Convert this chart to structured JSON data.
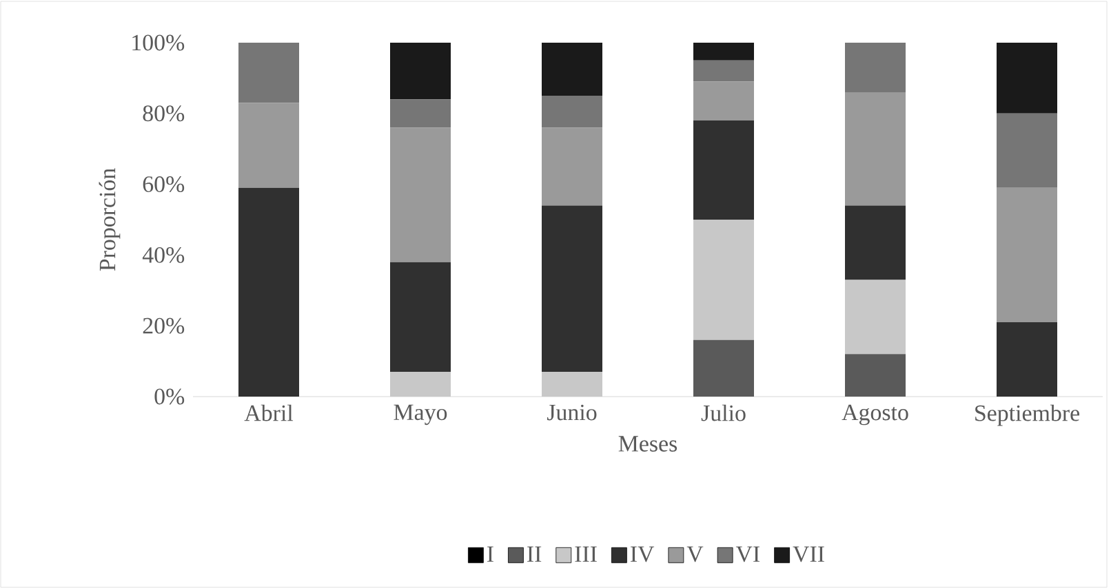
{
  "chart_data": {
    "type": "bar",
    "stacked": true,
    "xlabel": "Meses",
    "ylabel": "Proporción",
    "categories": [
      "Abril",
      "Mayo",
      "Junio",
      "Julio",
      "Agosto",
      "Septiembre"
    ],
    "series": [
      {
        "name": "I",
        "color": "#000000",
        "values": [
          0,
          0,
          0,
          0,
          0,
          0
        ]
      },
      {
        "name": "II",
        "color": "#5a5a5a",
        "values": [
          0,
          0,
          0,
          16,
          12,
          0
        ]
      },
      {
        "name": "III",
        "color": "#c8c8c8",
        "values": [
          0,
          7,
          7,
          34,
          21,
          0
        ]
      },
      {
        "name": "IV",
        "color": "#303030",
        "values": [
          59,
          31,
          47,
          28,
          21,
          21
        ]
      },
      {
        "name": "V",
        "color": "#9a9a9a",
        "values": [
          24,
          38,
          22,
          11,
          32,
          38
        ]
      },
      {
        "name": "VI",
        "color": "#767676",
        "values": [
          17,
          8,
          9,
          6,
          14,
          21
        ]
      },
      {
        "name": "VII",
        "color": "#1a1a1a",
        "values": [
          0,
          16,
          15,
          5,
          0,
          20
        ]
      }
    ],
    "ylim": [
      0,
      100
    ],
    "yticks": [
      {
        "value": 0,
        "label": "0%"
      },
      {
        "value": 20,
        "label": "20%"
      },
      {
        "value": 40,
        "label": "40%"
      },
      {
        "value": 60,
        "label": "60%"
      },
      {
        "value": 80,
        "label": "80%"
      },
      {
        "value": 100,
        "label": "100%"
      }
    ],
    "legend": "bottom",
    "grid": false
  }
}
